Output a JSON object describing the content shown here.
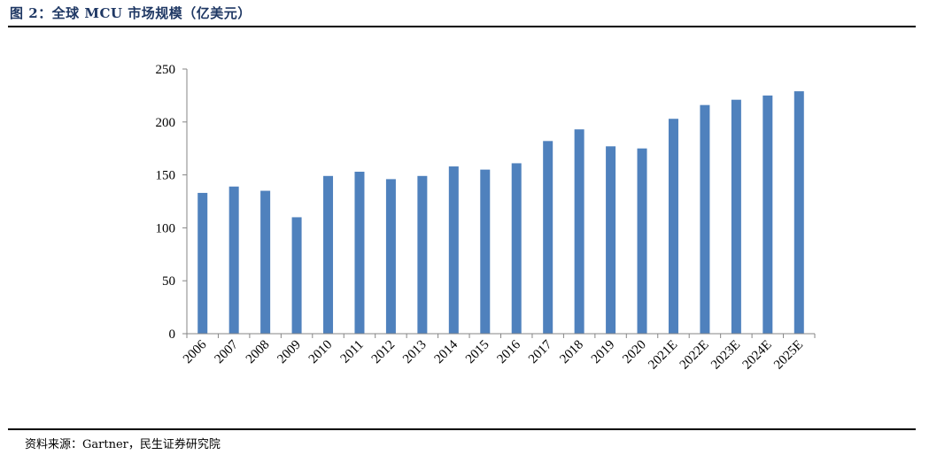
{
  "title": "图 2：全球 MCU 市场规模（亿美元）",
  "source": "资料来源：Gartner，民生证券研究院",
  "chart_data": {
    "type": "bar",
    "categories": [
      "2006",
      "2007",
      "2008",
      "2009",
      "2010",
      "2011",
      "2012",
      "2013",
      "2014",
      "2015",
      "2016",
      "2017",
      "2018",
      "2019",
      "2020",
      "2021E",
      "2022E",
      "2023E",
      "2024E",
      "2025E"
    ],
    "values": [
      133,
      139,
      135,
      110,
      149,
      153,
      146,
      149,
      158,
      155,
      161,
      182,
      193,
      177,
      175,
      203,
      216,
      221,
      225,
      229
    ],
    "yticks": [
      0,
      50,
      100,
      150,
      200,
      250
    ],
    "ylim": [
      0,
      250
    ],
    "bar_color": "#4f81bd",
    "grid": false,
    "legend": "none"
  }
}
